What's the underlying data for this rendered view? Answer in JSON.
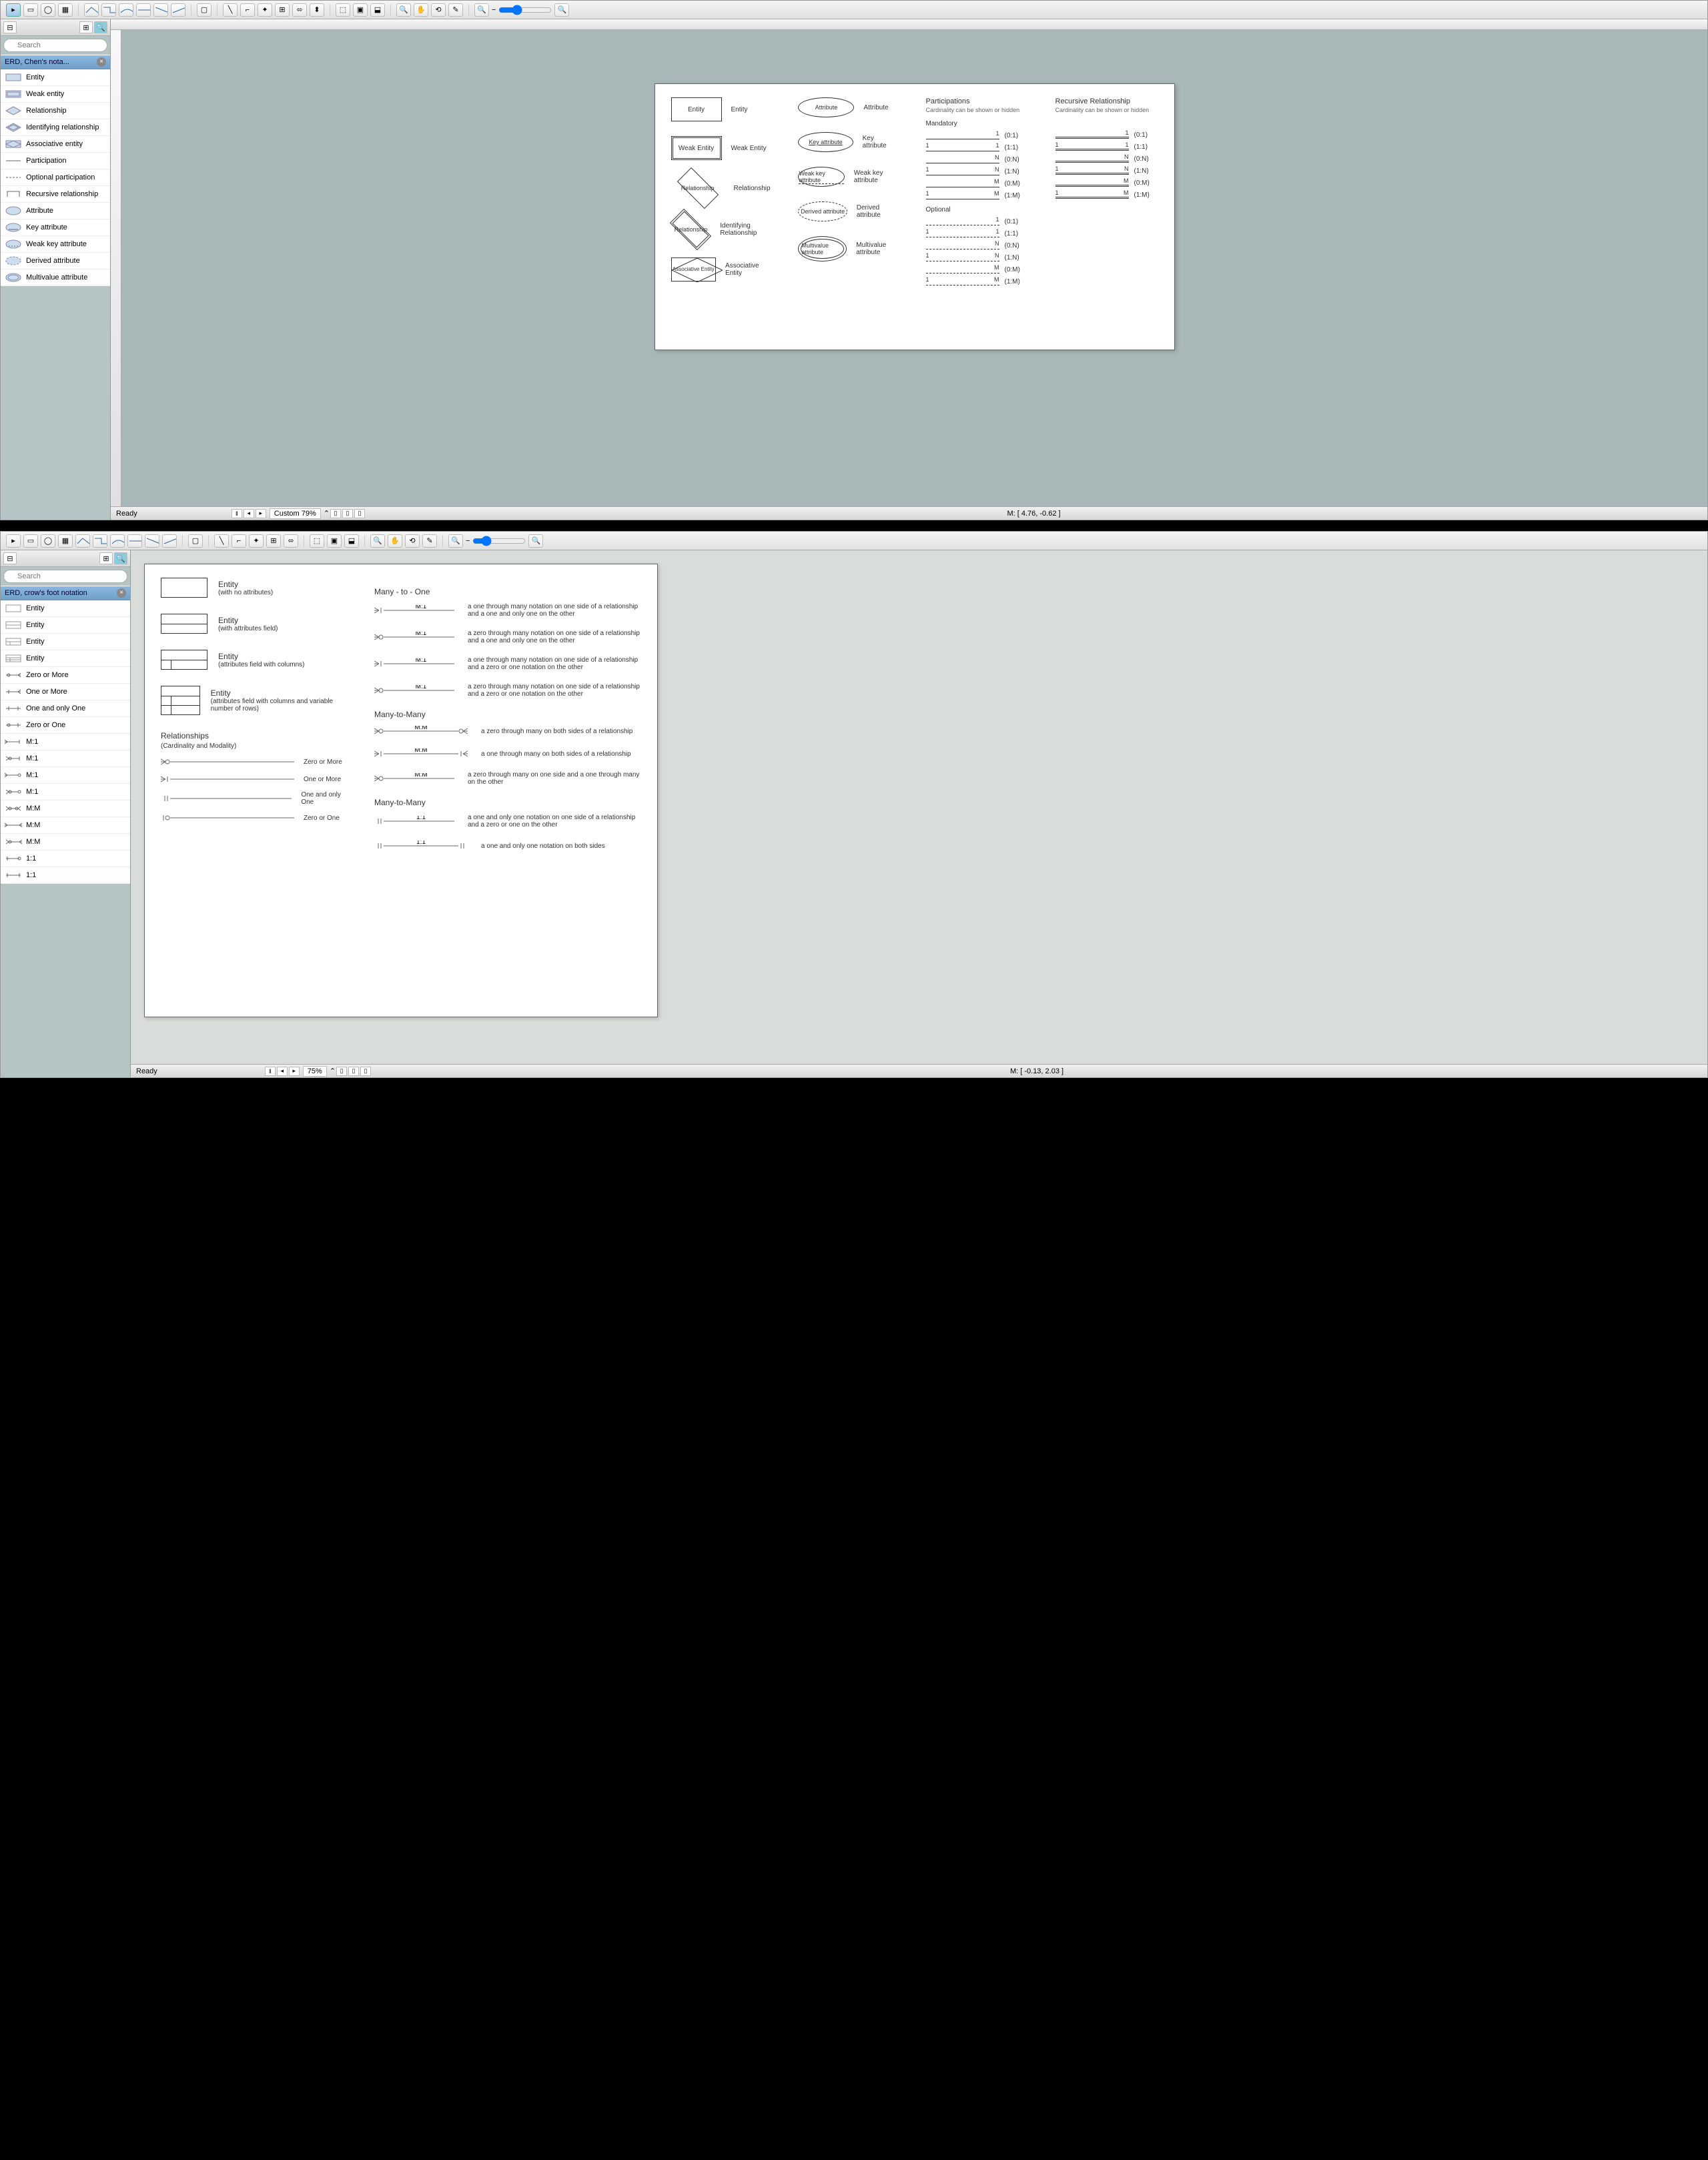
{
  "window1": {
    "search_placeholder": "Search",
    "library_title": "ERD, Chen's nota...",
    "status_ready": "Ready",
    "status_zoom": "Custom 79%",
    "status_mouse": "M: [ 4.76, -0.62 ]",
    "sidebar_items": [
      {
        "label": "Entity"
      },
      {
        "label": "Weak entity"
      },
      {
        "label": "Relationship"
      },
      {
        "label": "Identifying relationship"
      },
      {
        "label": "Associative entity"
      },
      {
        "label": "Participation"
      },
      {
        "label": "Optional participation"
      },
      {
        "label": "Recursive relationship"
      },
      {
        "label": "Attribute"
      },
      {
        "label": "Key attribute"
      },
      {
        "label": "Weak key attribute"
      },
      {
        "label": "Derived attribute"
      },
      {
        "label": "Multivalue attribute"
      }
    ],
    "page": {
      "shapes_col1": [
        {
          "shape": "Entity",
          "label": "Entity"
        },
        {
          "shape": "Weak Entity",
          "label": "Weak Entity"
        },
        {
          "shape": "Relationship",
          "label": "Relationship"
        },
        {
          "shape": "Relationship",
          "label": "Identifying Relationship"
        },
        {
          "shape": "Associative Entity",
          "label": "Associative Entity"
        }
      ],
      "shapes_col2": [
        {
          "shape": "Attribute",
          "label": "Attribute"
        },
        {
          "shape": "Key attribute",
          "label": "Key attribute"
        },
        {
          "shape": "Weak key attribute",
          "label": "Weak key attribute"
        },
        {
          "shape": "Derived attribute",
          "label": "Derived attribute"
        },
        {
          "shape": "Multivalue attribute",
          "label": "Multivalue attribute"
        }
      ],
      "participations_title": "Participations",
      "participations_sub": "Cardinality can be shown or hidden",
      "recursive_title": "Recursive Relationship",
      "recursive_sub": "Cardinality can be shown or hidden",
      "mandatory_label": "Mandatory",
      "optional_label": "Optional",
      "mandatory_lines": [
        {
          "left": "",
          "right": "1",
          "tag": "(0:1)"
        },
        {
          "left": "1",
          "right": "1",
          "tag": "(1:1)"
        },
        {
          "left": "",
          "right": "N",
          "tag": "(0:N)"
        },
        {
          "left": "1",
          "right": "N",
          "tag": "(1:N)"
        },
        {
          "left": "",
          "right": "M",
          "tag": "(0:M)"
        },
        {
          "left": "1",
          "right": "M",
          "tag": "(1:M)"
        }
      ],
      "optional_lines": [
        {
          "left": "",
          "right": "1",
          "tag": "(0:1)"
        },
        {
          "left": "1",
          "right": "1",
          "tag": "(1:1)"
        },
        {
          "left": "",
          "right": "N",
          "tag": "(0:N)"
        },
        {
          "left": "1",
          "right": "N",
          "tag": "(1:N)"
        },
        {
          "left": "",
          "right": "M",
          "tag": "(0:M)"
        },
        {
          "left": "1",
          "right": "M",
          "tag": "(1:M)"
        }
      ],
      "recursive_lines": [
        {
          "left": "",
          "right": "1",
          "tag": "(0:1)"
        },
        {
          "left": "1",
          "right": "1",
          "tag": "(1:1)"
        },
        {
          "left": "",
          "right": "N",
          "tag": "(0:N)"
        },
        {
          "left": "1",
          "right": "N",
          "tag": "(1:N)"
        },
        {
          "left": "",
          "right": "M",
          "tag": "(0:M)"
        },
        {
          "left": "1",
          "right": "M",
          "tag": "(1:M)"
        }
      ]
    }
  },
  "window2": {
    "search_placeholder": "Search",
    "library_title": "ERD, crow's foot notation",
    "status_ready": "Ready",
    "status_zoom": "75%",
    "status_mouse": "M: [ -0.13, 2.03 ]",
    "sidebar_items": [
      {
        "label": "Entity"
      },
      {
        "label": "Entity"
      },
      {
        "label": "Entity"
      },
      {
        "label": "Entity"
      },
      {
        "label": "Zero or More"
      },
      {
        "label": "One or More"
      },
      {
        "label": "One and only One"
      },
      {
        "label": "Zero or One"
      },
      {
        "label": "M:1"
      },
      {
        "label": "M:1"
      },
      {
        "label": "M:1"
      },
      {
        "label": "M:1"
      },
      {
        "label": "M:M"
      },
      {
        "label": "M:M"
      },
      {
        "label": "M:M"
      },
      {
        "label": "1:1"
      },
      {
        "label": "1:1"
      }
    ],
    "page": {
      "entities": [
        {
          "title": "Entity",
          "sub": "(with no attributes)"
        },
        {
          "title": "Entity",
          "sub": "(with attributes field)"
        },
        {
          "title": "Entity",
          "sub": "(attributes field with columns)"
        },
        {
          "title": "Entity",
          "sub": "(attributes field with columns and variable number of rows)"
        }
      ],
      "rel_title": "Relationships",
      "rel_sub": "(Cardinality and Modality)",
      "basic_rels": [
        {
          "label": "Zero or More"
        },
        {
          "label": "One or More"
        },
        {
          "label": "One and only One"
        },
        {
          "label": "Zero or One"
        }
      ],
      "sections": [
        {
          "title": "Many - to - One",
          "items": [
            {
              "label": "M:1",
              "desc": "a one through many notation on one side of a relationship and a one and only one on the other"
            },
            {
              "label": "M:1",
              "desc": "a zero through many notation on one side of a relationship and a one and only one on the other"
            },
            {
              "label": "M:1",
              "desc": "a one through many notation on one side of a relationship and a zero or one notation on the other"
            },
            {
              "label": "M:1",
              "desc": "a zero through many notation on one side of a relationship and a zero or one notation on the other"
            }
          ]
        },
        {
          "title": "Many-to-Many",
          "items": [
            {
              "label": "M:M",
              "desc": "a zero through many on both sides of a relationship"
            },
            {
              "label": "M:M",
              "desc": "a one through many on both sides of a relationship"
            },
            {
              "label": "M:M",
              "desc": "a zero through many on one side and a one through many on the other"
            }
          ]
        },
        {
          "title": "Many-to-Many",
          "items": [
            {
              "label": "1:1",
              "desc": "a one and only one notation on one side of a relationship and a zero or one on the other"
            },
            {
              "label": "1:1",
              "desc": "a one and only one notation on both sides"
            }
          ]
        }
      ]
    }
  }
}
